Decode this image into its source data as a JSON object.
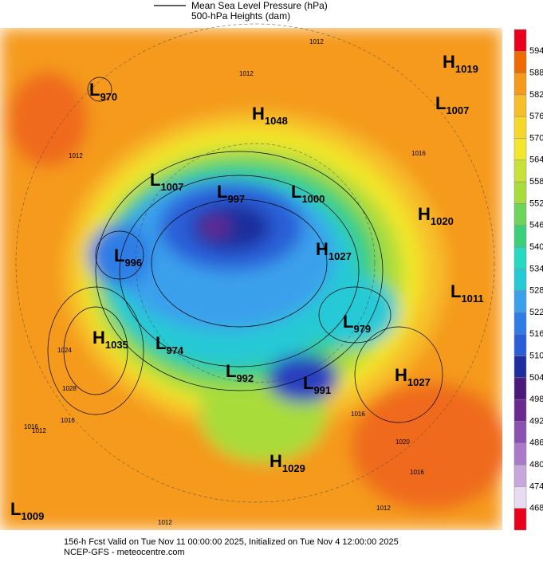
{
  "header": {
    "line1": "Mean Sea Level Pressure (hPa)",
    "line2": "500-hPa Heights (dam)"
  },
  "colorbar": {
    "ticks": [
      "594",
      "588",
      "582",
      "576",
      "570",
      "564",
      "558",
      "552",
      "546",
      "540",
      "534",
      "528",
      "522",
      "516",
      "510",
      "504",
      "498",
      "492",
      "486",
      "480",
      "474",
      "468"
    ]
  },
  "centers": [
    {
      "type": "H",
      "value": "1019"
    },
    {
      "type": "L",
      "value": "1007"
    },
    {
      "type": "H",
      "value": "1048"
    },
    {
      "type": "L",
      "value": "970"
    },
    {
      "type": "L",
      "value": "1007"
    },
    {
      "type": "L",
      "value": "997"
    },
    {
      "type": "L",
      "value": "1000"
    },
    {
      "type": "H",
      "value": "1020"
    },
    {
      "type": "L",
      "value": "996"
    },
    {
      "type": "H",
      "value": "1027"
    },
    {
      "type": "L",
      "value": "1011"
    },
    {
      "type": "H",
      "value": "1035"
    },
    {
      "type": "L",
      "value": "974"
    },
    {
      "type": "L",
      "value": "979"
    },
    {
      "type": "L",
      "value": "992"
    },
    {
      "type": "L",
      "value": "991"
    },
    {
      "type": "H",
      "value": "1027"
    },
    {
      "type": "H",
      "value": "1029"
    },
    {
      "type": "L",
      "value": "1009"
    }
  ],
  "isobar_labels": [
    "1012",
    "1012",
    "1012",
    "1012",
    "1012",
    "1012",
    "1016",
    "1016",
    "1016",
    "1016",
    "1020",
    "1024",
    "1028",
    "1016"
  ],
  "footer": {
    "line1": "156-h Fcst Valid on Tue Nov 11 00:00:00 2025, Initialized on Tue Nov  4 12:00:00 2025",
    "line2": "NCEP-GFS - meteocentre.com"
  }
}
